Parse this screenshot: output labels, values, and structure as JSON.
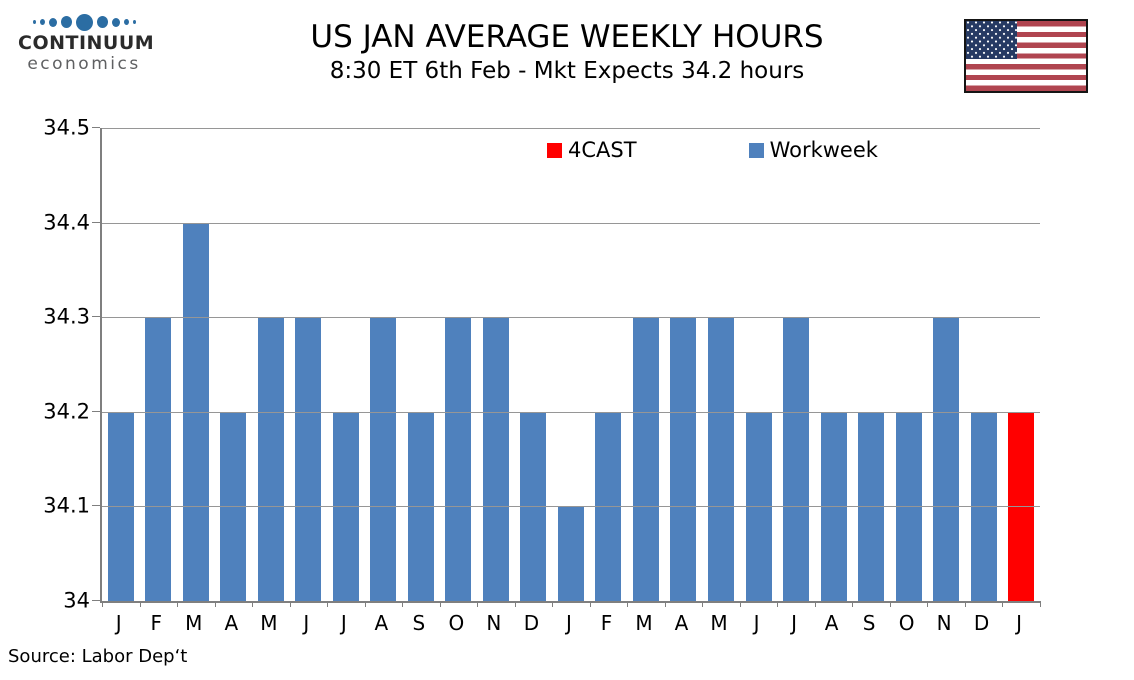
{
  "logo": {
    "line1": "CONTINUUM",
    "line2": "economics",
    "dot_color": "#2b6da3"
  },
  "header": {
    "title": "US JAN AVERAGE WEEKLY HOURS",
    "subtitle": "8:30 ET 6th Feb - Mkt Expects 34.2 hours"
  },
  "source": "Source: Labor Dep‘t",
  "flag_icon": "us-flag",
  "chart_data": {
    "type": "bar",
    "title": "US JAN AVERAGE WEEKLY HOURS",
    "subtitle": "8:30 ET 6th Feb - Mkt Expects 34.2 hours",
    "xlabel": "",
    "ylabel": "",
    "ylim": [
      34,
      34.5
    ],
    "yticks": [
      "34.5",
      "34.4",
      "34.3",
      "34.2",
      "34.1",
      "34"
    ],
    "grid": true,
    "legend_position": "top-center",
    "legend": [
      {
        "label": "4CAST",
        "color": "#FF0000"
      },
      {
        "label": "Workweek",
        "color": "#4F81BD"
      }
    ],
    "categories": [
      "J",
      "F",
      "M",
      "A",
      "M",
      "J",
      "J",
      "A",
      "S",
      "O",
      "N",
      "D",
      "J",
      "F",
      "M",
      "A",
      "M",
      "J",
      "J",
      "A",
      "S",
      "O",
      "N",
      "D",
      "J"
    ],
    "bars": [
      {
        "month": "J",
        "value": 34.2,
        "series": "Workweek"
      },
      {
        "month": "F",
        "value": 34.3,
        "series": "Workweek"
      },
      {
        "month": "M",
        "value": 34.4,
        "series": "Workweek"
      },
      {
        "month": "A",
        "value": 34.2,
        "series": "Workweek"
      },
      {
        "month": "M",
        "value": 34.3,
        "series": "Workweek"
      },
      {
        "month": "J",
        "value": 34.3,
        "series": "Workweek"
      },
      {
        "month": "J",
        "value": 34.2,
        "series": "Workweek"
      },
      {
        "month": "A",
        "value": 34.3,
        "series": "Workweek"
      },
      {
        "month": "S",
        "value": 34.2,
        "series": "Workweek"
      },
      {
        "month": "O",
        "value": 34.3,
        "series": "Workweek"
      },
      {
        "month": "N",
        "value": 34.3,
        "series": "Workweek"
      },
      {
        "month": "D",
        "value": 34.2,
        "series": "Workweek"
      },
      {
        "month": "J",
        "value": 34.1,
        "series": "Workweek"
      },
      {
        "month": "F",
        "value": 34.2,
        "series": "Workweek"
      },
      {
        "month": "M",
        "value": 34.3,
        "series": "Workweek"
      },
      {
        "month": "A",
        "value": 34.3,
        "series": "Workweek"
      },
      {
        "month": "M",
        "value": 34.3,
        "series": "Workweek"
      },
      {
        "month": "J",
        "value": 34.2,
        "series": "Workweek"
      },
      {
        "month": "J",
        "value": 34.3,
        "series": "Workweek"
      },
      {
        "month": "A",
        "value": 34.2,
        "series": "Workweek"
      },
      {
        "month": "S",
        "value": 34.2,
        "series": "Workweek"
      },
      {
        "month": "O",
        "value": 34.2,
        "series": "Workweek"
      },
      {
        "month": "N",
        "value": 34.3,
        "series": "Workweek"
      },
      {
        "month": "D",
        "value": 34.2,
        "series": "Workweek"
      },
      {
        "month": "J",
        "value": 34.2,
        "series": "4CAST"
      }
    ]
  }
}
